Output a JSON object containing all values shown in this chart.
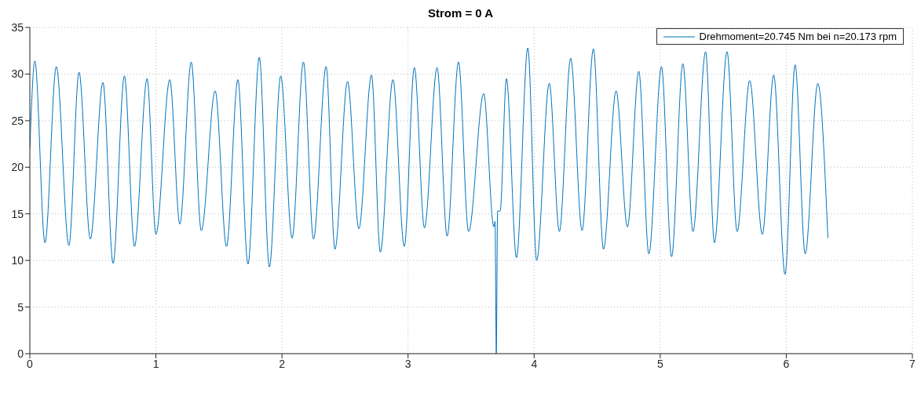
{
  "chart_data": {
    "type": "line",
    "title": "Strom = 0 A",
    "x": [
      0,
      0.04,
      0.12,
      0.21,
      0.31,
      0.39,
      0.48,
      0.58,
      0.66,
      0.75,
      0.83,
      0.93,
      1.0,
      1.11,
      1.19,
      1.28,
      1.36,
      1.47,
      1.56,
      1.65,
      1.73,
      1.82,
      1.9,
      1.99,
      2.08,
      2.17,
      2.25,
      2.35,
      2.42,
      2.52,
      2.61,
      2.71,
      2.78,
      2.88,
      2.97,
      3.05,
      3.13,
      3.23,
      3.31,
      3.4,
      3.48,
      3.6,
      3.68,
      3.69,
      3.7,
      3.71,
      3.73,
      3.78,
      3.86,
      3.95,
      4.02,
      4.12,
      4.2,
      4.29,
      4.38,
      4.47,
      4.55,
      4.65,
      4.74,
      4.83,
      4.91,
      5.01,
      5.09,
      5.18,
      5.26,
      5.36,
      5.43,
      5.53,
      5.61,
      5.71,
      5.81,
      5.9,
      5.99,
      6.07,
      6.15,
      6.25,
      6.33
    ],
    "series": [
      {
        "name": "Drehmoment=20.745 Nm bei n=20.173 rpm",
        "color": "#0072bd",
        "values": [
          22,
          31.4,
          11.9,
          30.8,
          11.6,
          30.2,
          12.3,
          29.1,
          9.7,
          29.8,
          11.5,
          29.5,
          12.8,
          29.4,
          13.9,
          31.3,
          13.2,
          28.2,
          11.5,
          29.4,
          9.6,
          31.8,
          9.3,
          29.8,
          12.4,
          31.3,
          12.3,
          30.8,
          11.2,
          29.2,
          13.4,
          29.9,
          10.9,
          29.4,
          11.5,
          30.7,
          13.5,
          30.7,
          12.6,
          31.3,
          13.1,
          27.9,
          13.6,
          14.2,
          0,
          15.3,
          15.3,
          29.5,
          10.3,
          32.8,
          10,
          29,
          13.1,
          31.7,
          13.2,
          32.7,
          11.2,
          28.2,
          13.6,
          30.3,
          10.7,
          30.8,
          10.4,
          31.1,
          13.1,
          32.4,
          11.9,
          32.4,
          13.1,
          29.3,
          12.8,
          29.9,
          8.5,
          31,
          10.7,
          29,
          12.4
        ]
      }
    ],
    "xlim": [
      0,
      7
    ],
    "xticks": [
      0,
      1,
      2,
      3,
      4,
      5,
      6,
      7
    ],
    "ylim": [
      0,
      35
    ],
    "yticks": [
      0,
      5,
      10,
      15,
      20,
      25,
      30,
      35
    ],
    "grid": true,
    "legend": "top right",
    "marker": "none",
    "line_style": "solid"
  }
}
